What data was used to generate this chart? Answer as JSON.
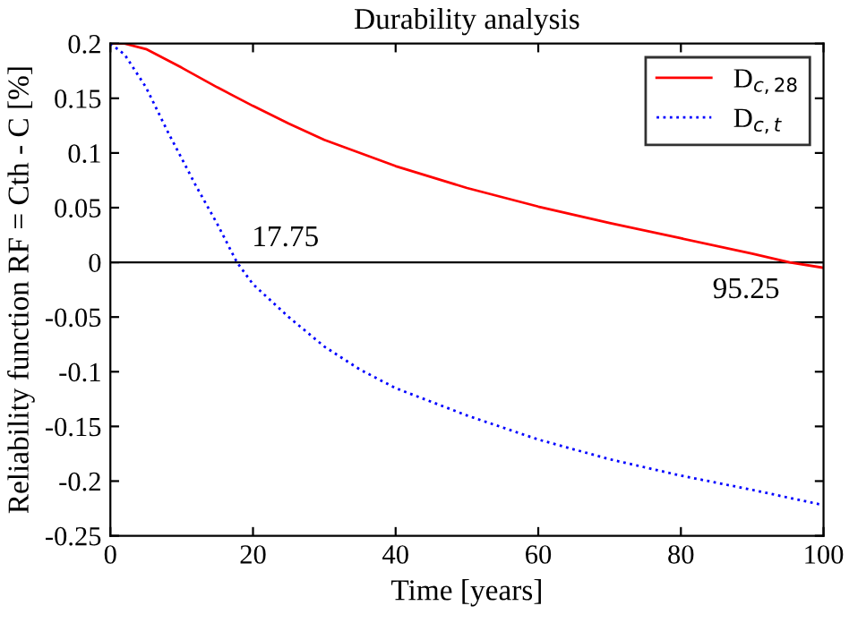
{
  "chart_data": {
    "type": "line",
    "title": "Durability analysis",
    "xlabel": "Time [years]",
    "ylabel": "Reliability function RF = Cth - C [%]",
    "xlim": [
      0,
      100
    ],
    "xticks": [
      0,
      20,
      40,
      60,
      80,
      100
    ],
    "ylim": [
      -0.25,
      0.2
    ],
    "yticks": [
      -0.25,
      -0.2,
      -0.15,
      -0.1,
      -0.05,
      0,
      0.05,
      0.1,
      0.15,
      0.2
    ],
    "grid": false,
    "legend": "top right",
    "ref_lines": [
      {
        "axis": "y",
        "value": 0,
        "color": "#000000",
        "line_style": "solid"
      }
    ],
    "annotations": [
      {
        "text": "17.75",
        "x": 17.75,
        "y": 0
      },
      {
        "text": "95.25",
        "x": 95.25,
        "y": 0
      }
    ],
    "series": [
      {
        "name": "D$_{c,28}$",
        "color": "#ff0000",
        "line_style": "solid",
        "x": [
          0,
          2,
          5,
          10,
          15,
          20,
          25,
          30,
          40,
          50,
          60,
          70,
          80,
          90,
          95.25,
          100
        ],
        "values": [
          0.2,
          0.2,
          0.195,
          0.178,
          0.16,
          0.143,
          0.127,
          0.112,
          0.088,
          0.068,
          0.051,
          0.036,
          0.022,
          0.008,
          0,
          -0.005
        ]
      },
      {
        "name": "D$_{c,t}$",
        "color": "#0000ff",
        "line_style": "dotted",
        "x": [
          0,
          2,
          5,
          8,
          10,
          12,
          15,
          17.75,
          20,
          25,
          30,
          35,
          40,
          50,
          60,
          70,
          80,
          90,
          100
        ],
        "values": [
          0.2,
          0.19,
          0.16,
          0.12,
          0.095,
          0.07,
          0.035,
          0,
          -0.02,
          -0.05,
          -0.077,
          -0.098,
          -0.115,
          -0.14,
          -0.162,
          -0.18,
          -0.195,
          -0.208,
          -0.222
        ]
      }
    ]
  }
}
